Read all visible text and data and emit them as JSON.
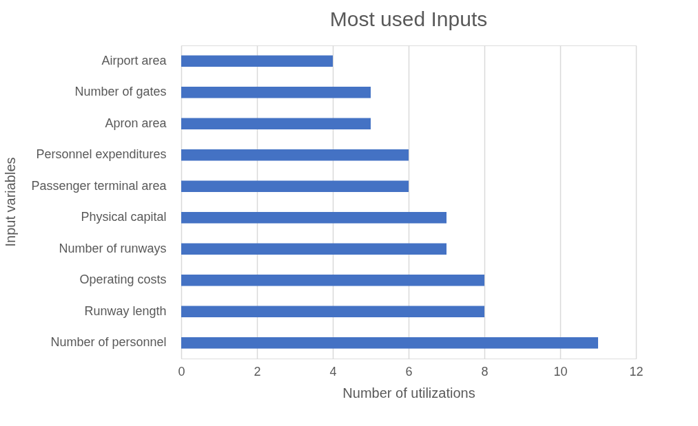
{
  "chart_data": {
    "type": "bar",
    "orientation": "horizontal",
    "title": "Most used Inputs",
    "xlabel": "Number of utilizations",
    "ylabel": "Input variables",
    "categories": [
      "Airport area",
      "Number of gates",
      "Apron area",
      "Personnel expenditures",
      "Passenger terminal area",
      "Physical capital",
      "Number of runways",
      "Operating costs",
      "Runway length",
      "Number of personnel"
    ],
    "values": [
      4,
      5,
      5,
      6,
      6,
      7,
      7,
      8,
      8,
      11
    ],
    "color": "#4472c4",
    "xlim": [
      0,
      12
    ],
    "xticks": [
      0,
      2,
      4,
      6,
      8,
      10,
      12
    ],
    "grid": "x"
  }
}
